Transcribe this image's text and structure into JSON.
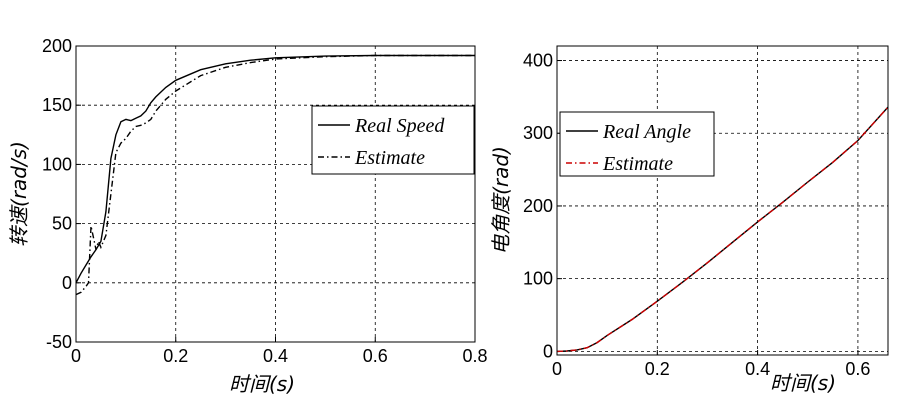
{
  "chart_data": [
    {
      "type": "line",
      "xlabel": "时间(s)",
      "ylabel": "转速(rad/s)",
      "xlim": [
        0,
        0.8
      ],
      "ylim": [
        -50,
        200
      ],
      "xticks": [
        "0",
        "0.2",
        "0.4",
        "0.6",
        "0.8"
      ],
      "yticks": [
        "-50",
        "0",
        "50",
        "100",
        "150",
        "200"
      ],
      "grid": true,
      "legend_position": "center-right",
      "series": [
        {
          "name": "Real Speed",
          "color": "#000000",
          "dash": "solid",
          "x": [
            0,
            0.01,
            0.02,
            0.03,
            0.04,
            0.05,
            0.06,
            0.07,
            0.08,
            0.09,
            0.1,
            0.11,
            0.12,
            0.13,
            0.14,
            0.15,
            0.16,
            0.18,
            0.2,
            0.25,
            0.3,
            0.35,
            0.4,
            0.5,
            0.6,
            0.7,
            0.8
          ],
          "y": [
            0,
            8,
            15,
            22,
            28,
            35,
            60,
            105,
            125,
            136,
            138,
            137,
            139,
            141,
            145,
            152,
            157,
            165,
            171,
            180,
            185,
            188,
            190,
            191.5,
            192,
            192,
            192
          ]
        },
        {
          "name": "Estimate",
          "color": "#000000",
          "dash": "dashdot",
          "x": [
            0,
            0.01,
            0.02,
            0.025,
            0.03,
            0.035,
            0.04,
            0.045,
            0.05,
            0.06,
            0.07,
            0.08,
            0.09,
            0.1,
            0.11,
            0.12,
            0.13,
            0.14,
            0.15,
            0.16,
            0.18,
            0.2,
            0.25,
            0.3,
            0.35,
            0.4,
            0.5,
            0.6,
            0.7,
            0.8
          ],
          "y": [
            -10,
            -8,
            -3,
            0,
            48,
            38,
            28,
            35,
            30,
            40,
            75,
            110,
            118,
            122,
            128,
            132,
            133,
            135,
            138,
            145,
            155,
            162,
            175,
            182,
            186,
            189,
            191,
            192,
            192,
            192
          ]
        }
      ]
    },
    {
      "type": "line",
      "xlabel": "时间(s)",
      "ylabel": "电角度(rad)",
      "xlim": [
        0,
        0.66
      ],
      "ylim": [
        -5,
        420
      ],
      "xticks": [
        "0",
        "0.2",
        "0.4",
        "0.6"
      ],
      "yticks": [
        "0",
        "100",
        "200",
        "300",
        "400"
      ],
      "grid": true,
      "legend_position": "top-left",
      "series": [
        {
          "name": "Real Angle",
          "color": "#000000",
          "dash": "solid",
          "x": [
            0,
            0.02,
            0.04,
            0.06,
            0.08,
            0.1,
            0.15,
            0.2,
            0.25,
            0.3,
            0.35,
            0.4,
            0.45,
            0.5,
            0.55,
            0.6,
            0.66
          ],
          "y": [
            0,
            0.5,
            2,
            5,
            12,
            22,
            44,
            69,
            95,
            122,
            150,
            178,
            205,
            233,
            260,
            290,
            336
          ]
        },
        {
          "name": "Estimate",
          "color": "#cc0000",
          "dash": "dashdot",
          "x": [
            0,
            0.02,
            0.04,
            0.06,
            0.08,
            0.1,
            0.15,
            0.2,
            0.25,
            0.3,
            0.35,
            0.4,
            0.45,
            0.5,
            0.55,
            0.6,
            0.66
          ],
          "y": [
            0,
            0.5,
            2,
            5,
            12,
            22,
            44,
            69,
            95,
            122,
            150,
            178,
            205,
            233,
            260,
            290,
            336
          ]
        }
      ]
    }
  ]
}
